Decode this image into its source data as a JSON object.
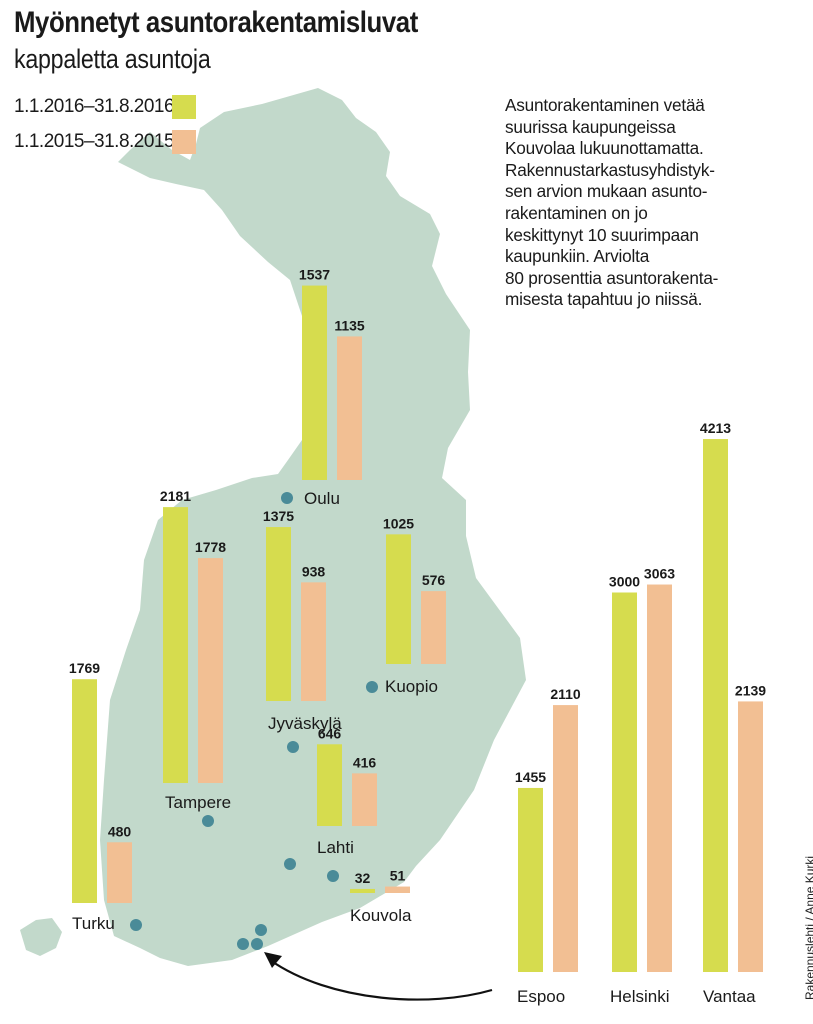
{
  "header": {
    "title": "Myönnetyt asuntorakentamisluvat",
    "subtitle": "kappaletta asuntoja"
  },
  "legend": [
    {
      "label": "1.1.2016–31.8.2016",
      "color": "#d6dc4e"
    },
    {
      "label": "1.1.2015–31.8.2015",
      "color": "#f2bf93"
    }
  ],
  "note_lines": [
    "Asuntorakentaminen vetää",
    "suurissa kaupungeissa",
    "Kouvolaa lukuunottamatta.",
    "Rakennustarkastusyhdistyk-",
    "sen arvion mukaan asunto-",
    "rakentaminen on jo",
    "keskittynyt 10 suurimpaan",
    "kaupunkiin. Arviolta",
    "80 prosenttia asuntorakenta-",
    "misesta tapahtuu jo niissä."
  ],
  "credit": "Rakennuslehti / Anne Kurki",
  "colors": {
    "map": "#c2d9cb",
    "dot": "#4a8b98",
    "bar_2016": "#d6dc4e",
    "bar_2015": "#f2bf93"
  },
  "chart_data": {
    "type": "bar",
    "series": [
      {
        "name": "1.1.2016–31.8.2016"
      },
      {
        "name": "1.1.2015–31.8.2015"
      }
    ],
    "categories": [
      "Oulu",
      "Tampere",
      "Jyväskylä",
      "Kuopio",
      "Turku",
      "Lahti",
      "Kouvola",
      "Espoo",
      "Helsinki",
      "Vantaa"
    ],
    "cities": [
      {
        "name": "Oulu",
        "v2016": 1537,
        "v2015": 1135
      },
      {
        "name": "Tampere",
        "v2016": 2181,
        "v2015": 1778
      },
      {
        "name": "Jyväskylä",
        "v2016": 1375,
        "v2015": 938
      },
      {
        "name": "Kuopio",
        "v2016": 1025,
        "v2015": 576
      },
      {
        "name": "Turku",
        "v2016": 1769,
        "v2015": 480
      },
      {
        "name": "Lahti",
        "v2016": 646,
        "v2015": 416
      },
      {
        "name": "Kouvola",
        "v2016": 32,
        "v2015": 51
      },
      {
        "name": "Espoo",
        "v2016": 1455,
        "v2015": 2110
      },
      {
        "name": "Helsinki",
        "v2016": 3000,
        "v2015": 3063
      },
      {
        "name": "Vantaa",
        "v2016": 4213,
        "v2015": 2139
      }
    ]
  }
}
